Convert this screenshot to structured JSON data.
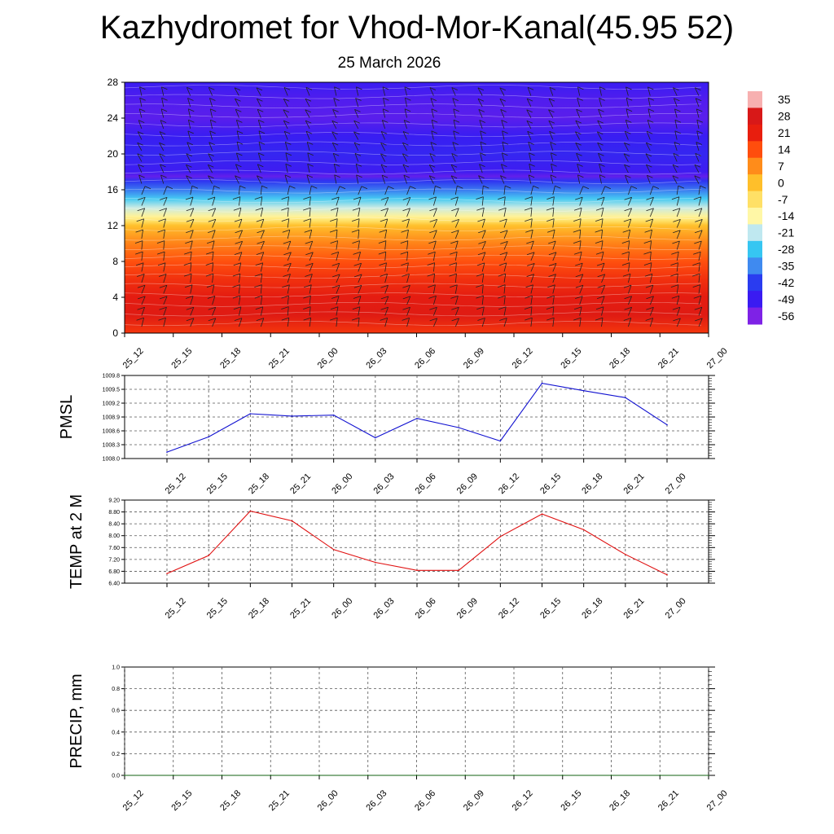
{
  "header": {
    "title": "Kazhydromet for Vhod-Mor-Kanal(45.95 52)",
    "subtitle": "25 March 2026"
  },
  "chart_data": [
    {
      "type": "heatmap",
      "description_free": true,
      "x_ticks": [
        "25_12",
        "25_15",
        "25_18",
        "25_21",
        "26_00",
        "26_03",
        "26_06",
        "26_09",
        "26_12",
        "26_15",
        "26_18",
        "26_21",
        "27_00"
      ],
      "y_ticks": [
        0,
        4,
        8,
        12,
        16,
        20,
        24,
        28
      ],
      "ylim": [
        0,
        28
      ],
      "colorbar_labels": [
        "35",
        "28",
        "21",
        "14",
        "7",
        "0",
        "-7",
        "-14",
        "-21",
        "-28",
        "-35",
        "-42",
        "-49",
        "-56"
      ],
      "colorbar_range": [
        -63,
        35
      ],
      "colorbar_colors": [
        "#7e22e6",
        "#3a1bf2",
        "#2a3cf0",
        "#3f8af0",
        "#36c6f2",
        "#bfe8f0",
        "#fff7a6",
        "#ffe066",
        "#ffbf2a",
        "#ff8c1a",
        "#ff4d0d",
        "#e81e0e",
        "#d81818",
        "#f7b0b0"
      ],
      "temperature_profile": [
        {
          "level": 0,
          "value": 16
        },
        {
          "level": 2,
          "value": 24
        },
        {
          "level": 4,
          "value": 22
        },
        {
          "level": 6,
          "value": 17
        },
        {
          "level": 8,
          "value": 12
        },
        {
          "level": 10,
          "value": 6
        },
        {
          "level": 12,
          "value": -3
        },
        {
          "level": 12.5,
          "value": -10
        },
        {
          "level": 13,
          "value": -16
        },
        {
          "level": 14,
          "value": -24
        },
        {
          "level": 15,
          "value": -32
        },
        {
          "level": 16,
          "value": -42
        },
        {
          "level": 17,
          "value": -50
        },
        {
          "level": 17.5,
          "value": -60
        },
        {
          "level": 18,
          "value": -56
        },
        {
          "level": 20,
          "value": -53
        },
        {
          "level": 22,
          "value": -55
        },
        {
          "level": 24,
          "value": -59
        },
        {
          "level": 26,
          "value": -58
        },
        {
          "level": 28,
          "value": -55
        }
      ],
      "grid": false
    },
    {
      "type": "line",
      "ylabel": "PMSL",
      "x": [
        "25_12",
        "25_15",
        "25_18",
        "25_21",
        "26_00",
        "26_03",
        "26_06",
        "26_09",
        "26_12",
        "26_15",
        "26_18",
        "26_21",
        "27_00"
      ],
      "y_ticks": [
        "1008.0",
        "1008.3",
        "1008.6",
        "1008.9",
        "1009.2",
        "1009.5",
        "1009.8"
      ],
      "ylim": [
        1008.0,
        1009.8
      ],
      "series": [
        {
          "values": [
            1008.14,
            1008.47,
            1008.97,
            1008.92,
            1008.94,
            1008.45,
            1008.87,
            1008.67,
            1008.38,
            1009.63,
            1009.47,
            1009.32,
            1008.73
          ],
          "color": "#1010d0"
        }
      ],
      "grid": true
    },
    {
      "type": "line",
      "ylabel": "TEMP at 2 M",
      "x": [
        "25_12",
        "25_15",
        "25_18",
        "25_21",
        "26_00",
        "26_03",
        "26_06",
        "26_09",
        "26_12",
        "26_15",
        "26_18",
        "26_21",
        "27_00"
      ],
      "y_ticks": [
        "6.40",
        "6.80",
        "7.20",
        "7.60",
        "8.00",
        "8.40",
        "8.80",
        "9.20"
      ],
      "ylim": [
        6.4,
        9.2
      ],
      "series": [
        {
          "values": [
            6.72,
            7.33,
            8.83,
            8.5,
            7.53,
            7.1,
            6.83,
            6.83,
            7.97,
            8.73,
            8.2,
            7.37,
            6.68
          ],
          "color": "#e01010"
        }
      ],
      "grid": true
    },
    {
      "type": "line",
      "ylabel": "PRECIP, mm",
      "x": [
        "25_12",
        "25_15",
        "25_18",
        "25_21",
        "26_00",
        "26_03",
        "26_06",
        "26_09",
        "26_12",
        "26_15",
        "26_18",
        "26_21",
        "27_00"
      ],
      "y_ticks": [
        "0.0",
        "0.2",
        "0.4",
        "0.6",
        "0.8",
        "1.0"
      ],
      "ylim": [
        0.0,
        1.0
      ],
      "series": [
        {
          "values": [
            0,
            0,
            0,
            0,
            0,
            0,
            0,
            0,
            0,
            0,
            0,
            0,
            0
          ],
          "color": "#106010"
        }
      ],
      "grid": true
    }
  ]
}
